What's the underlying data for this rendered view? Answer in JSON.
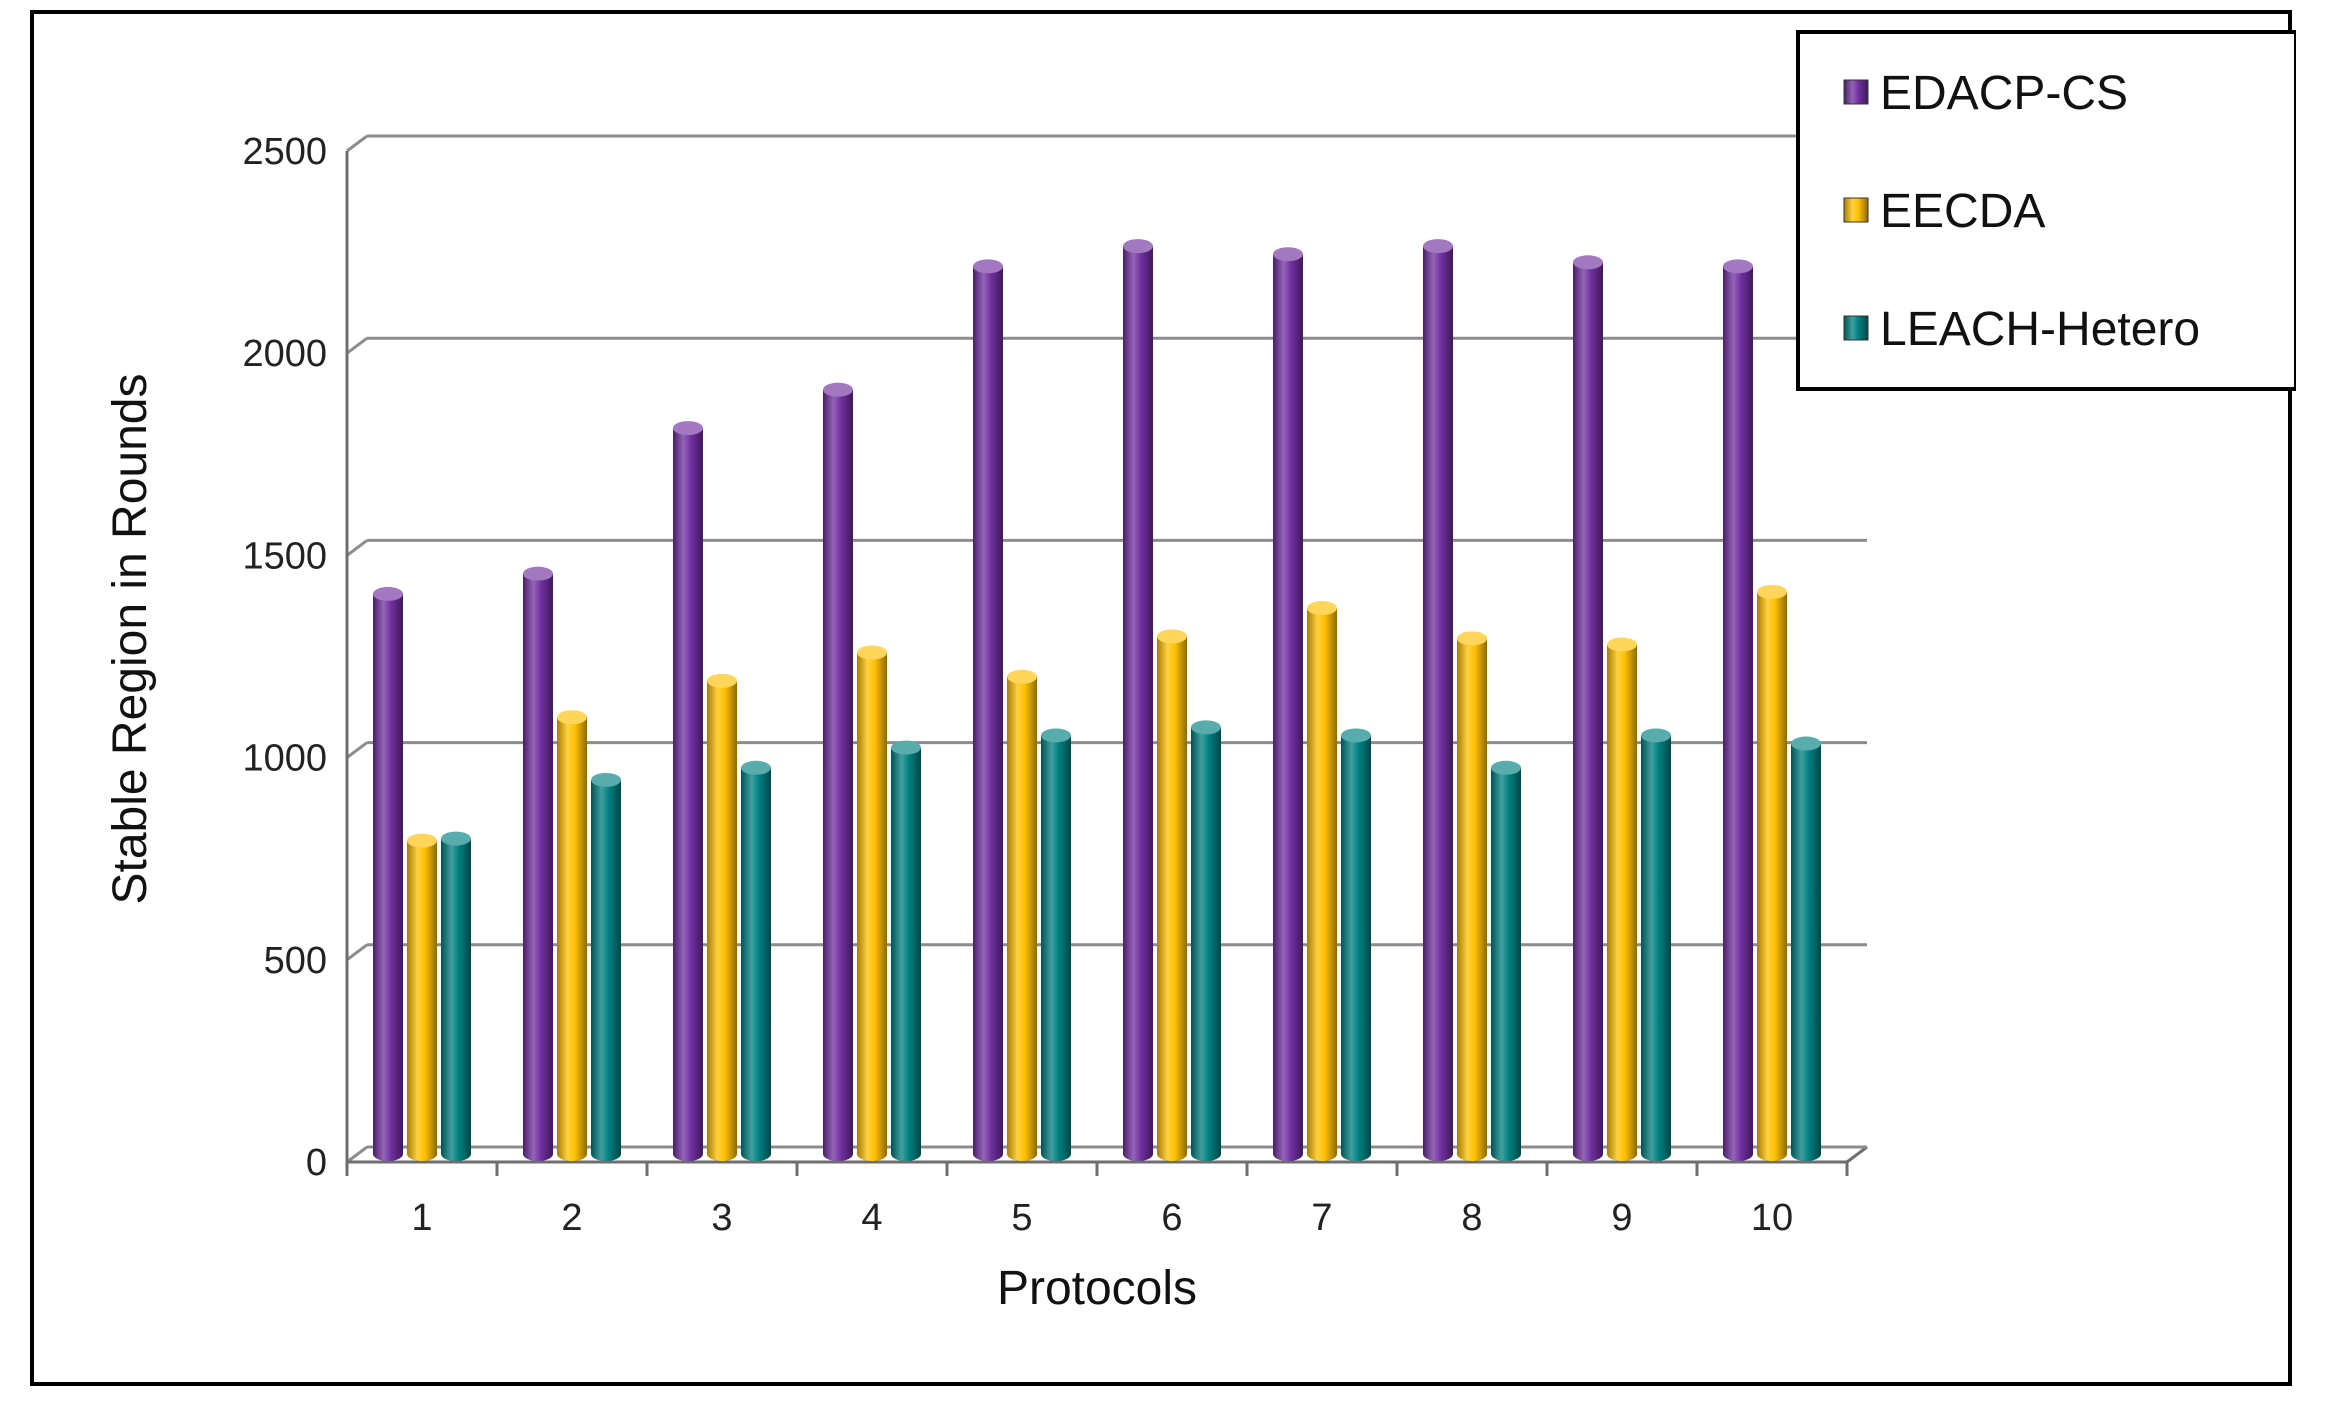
{
  "chart_data": {
    "type": "bar",
    "title": "",
    "xlabel": "Protocols",
    "ylabel": "Stable Region in Rounds",
    "categories": [
      "1",
      "2",
      "3",
      "4",
      "5",
      "6",
      "7",
      "8",
      "9",
      "10"
    ],
    "ylim": [
      0,
      2500
    ],
    "yticks": [
      0,
      500,
      1000,
      1500,
      2000,
      2500
    ],
    "grid": true,
    "legend_position": "top-right",
    "series": [
      {
        "name": "EDACP-CS",
        "color": "#7030A0",
        "values": [
          1385,
          1435,
          1795,
          1890,
          2195,
          2245,
          2225,
          2245,
          2205,
          2195
        ]
      },
      {
        "name": "EECDA",
        "color": "#FFC000",
        "values": [
          775,
          1080,
          1170,
          1240,
          1180,
          1280,
          1350,
          1275,
          1260,
          1390
        ]
      },
      {
        "name": "LEACH-Hetero",
        "color": "#008080",
        "values": [
          780,
          925,
          955,
          1005,
          1035,
          1055,
          1035,
          955,
          1035,
          1015
        ]
      }
    ]
  }
}
